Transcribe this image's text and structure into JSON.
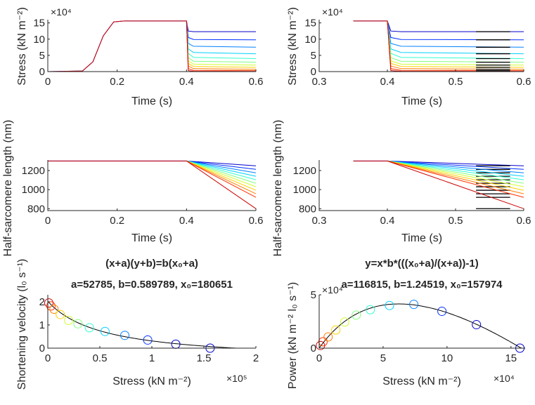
{
  "chart_data": [
    {
      "id": "p1",
      "type": "line",
      "xlabel": "Time (s)",
      "ylabel": "Stress (kN m⁻²)",
      "xlim": [
        0,
        0.6
      ],
      "ylim": [
        0,
        16
      ],
      "xticks": [
        "0",
        "0.2",
        "0.4",
        "0.6"
      ],
      "yticks": [
        "0",
        "5",
        "10",
        "15"
      ],
      "y_exponent": "×10⁴",
      "series": [
        {
          "color": "#0000cc",
          "values": [
            [
              0,
              0
            ],
            [
              0.1,
              0.2
            ],
            [
              0.13,
              3
            ],
            [
              0.16,
              11
            ],
            [
              0.19,
              15.3
            ],
            [
              0.22,
              15.6
            ],
            [
              0.4,
              15.6
            ],
            [
              0.405,
              12.5
            ],
            [
              0.42,
              12.3
            ],
            [
              0.6,
              12.3
            ]
          ]
        },
        {
          "color": "#0030ff",
          "values": [
            [
              0.4,
              15.6
            ],
            [
              0.405,
              10.5
            ],
            [
              0.42,
              9.9
            ],
            [
              0.6,
              9.8
            ]
          ]
        },
        {
          "color": "#0080ff",
          "values": [
            [
              0.4,
              15.6
            ],
            [
              0.405,
              8.7
            ],
            [
              0.42,
              7.8
            ],
            [
              0.6,
              7.5
            ]
          ]
        },
        {
          "color": "#00d0ff",
          "values": [
            [
              0.4,
              15.6
            ],
            [
              0.405,
              7.0
            ],
            [
              0.42,
              5.9
            ],
            [
              0.6,
              5.5
            ]
          ]
        },
        {
          "color": "#30ffd0",
          "values": [
            [
              0.4,
              15.6
            ],
            [
              0.405,
              5.6
            ],
            [
              0.42,
              4.4
            ],
            [
              0.6,
              4.0
            ]
          ]
        },
        {
          "color": "#80ff80",
          "values": [
            [
              0.4,
              15.6
            ],
            [
              0.405,
              4.3
            ],
            [
              0.42,
              3.2
            ],
            [
              0.6,
              2.9
            ]
          ]
        },
        {
          "color": "#d0ff30",
          "values": [
            [
              0.4,
              15.6
            ],
            [
              0.405,
              3.3
            ],
            [
              0.42,
              2.3
            ],
            [
              0.6,
              2.0
            ]
          ]
        },
        {
          "color": "#ffd000",
          "values": [
            [
              0.4,
              15.6
            ],
            [
              0.405,
              2.5
            ],
            [
              0.42,
              1.6
            ],
            [
              0.6,
              1.3
            ]
          ]
        },
        {
          "color": "#ff8000",
          "values": [
            [
              0.4,
              15.6
            ],
            [
              0.405,
              1.7
            ],
            [
              0.42,
              0.9
            ],
            [
              0.6,
              0.7
            ]
          ]
        },
        {
          "color": "#ff3000",
          "values": [
            [
              0.4,
              15.6
            ],
            [
              0.405,
              0.9
            ],
            [
              0.42,
              0.4
            ],
            [
              0.6,
              0.3
            ]
          ]
        },
        {
          "color": "#cc0000",
          "values": [
            [
              0,
              0
            ],
            [
              0.1,
              0.2
            ],
            [
              0.13,
              3
            ],
            [
              0.16,
              11
            ],
            [
              0.19,
              15.3
            ],
            [
              0.22,
              15.6
            ],
            [
              0.4,
              15.6
            ],
            [
              0.405,
              0.3
            ],
            [
              0.42,
              0.1
            ],
            [
              0.6,
              0.05
            ]
          ]
        }
      ]
    },
    {
      "id": "p2",
      "type": "line",
      "xlabel": "Time (s)",
      "ylabel": "Stress (kN m⁻²)",
      "xlim": [
        0.3,
        0.6
      ],
      "ylim": [
        0,
        16
      ],
      "xticks": [
        "0.3",
        "0.4",
        "0.5",
        "0.6"
      ],
      "yticks": [
        "0",
        "5",
        "10",
        "15"
      ],
      "y_exponent": "×10⁴",
      "highlight_window": [
        0.53,
        0.58
      ],
      "series": [
        {
          "color": "#0000cc",
          "values": [
            [
              0.35,
              15.6
            ],
            [
              0.4,
              15.6
            ],
            [
              0.405,
              12.5
            ],
            [
              0.42,
              12.3
            ],
            [
              0.6,
              12.3
            ]
          ]
        },
        {
          "color": "#0030ff",
          "values": [
            [
              0.4,
              15.6
            ],
            [
              0.405,
              10.5
            ],
            [
              0.42,
              9.9
            ],
            [
              0.6,
              9.8
            ]
          ]
        },
        {
          "color": "#0080ff",
          "values": [
            [
              0.4,
              15.6
            ],
            [
              0.405,
              8.7
            ],
            [
              0.42,
              7.8
            ],
            [
              0.6,
              7.5
            ]
          ]
        },
        {
          "color": "#00d0ff",
          "values": [
            [
              0.4,
              15.6
            ],
            [
              0.405,
              7.0
            ],
            [
              0.42,
              5.9
            ],
            [
              0.6,
              5.5
            ]
          ]
        },
        {
          "color": "#30ffd0",
          "values": [
            [
              0.4,
              15.6
            ],
            [
              0.405,
              5.6
            ],
            [
              0.42,
              4.4
            ],
            [
              0.6,
              4.0
            ]
          ]
        },
        {
          "color": "#80ff80",
          "values": [
            [
              0.4,
              15.6
            ],
            [
              0.405,
              4.3
            ],
            [
              0.42,
              3.2
            ],
            [
              0.6,
              2.9
            ]
          ]
        },
        {
          "color": "#d0ff30",
          "values": [
            [
              0.4,
              15.6
            ],
            [
              0.405,
              3.3
            ],
            [
              0.42,
              2.3
            ],
            [
              0.6,
              2.0
            ]
          ]
        },
        {
          "color": "#ffd000",
          "values": [
            [
              0.4,
              15.6
            ],
            [
              0.405,
              2.5
            ],
            [
              0.42,
              1.6
            ],
            [
              0.6,
              1.3
            ]
          ]
        },
        {
          "color": "#ff8000",
          "values": [
            [
              0.4,
              15.6
            ],
            [
              0.405,
              1.7
            ],
            [
              0.42,
              0.9
            ],
            [
              0.6,
              0.7
            ]
          ]
        },
        {
          "color": "#ff3000",
          "values": [
            [
              0.4,
              15.6
            ],
            [
              0.405,
              0.9
            ],
            [
              0.42,
              0.4
            ],
            [
              0.6,
              0.3
            ]
          ]
        },
        {
          "color": "#cc0000",
          "values": [
            [
              0.35,
              15.6
            ],
            [
              0.4,
              15.6
            ],
            [
              0.405,
              0.3
            ],
            [
              0.42,
              0.1
            ],
            [
              0.6,
              0.05
            ]
          ]
        }
      ]
    },
    {
      "id": "p3",
      "type": "line",
      "xlabel": "Time (s)",
      "ylabel": "Half-sarcomere length (nm)",
      "xlim": [
        0,
        0.6
      ],
      "ylim": [
        780,
        1310
      ],
      "xticks": [
        "0",
        "0.2",
        "0.4",
        "0.6"
      ],
      "yticks": [
        "800",
        "1000",
        "1200"
      ],
      "series": [
        {
          "color": "#0000cc",
          "values": [
            [
              0,
              1300
            ],
            [
              0.4,
              1300
            ],
            [
              0.6,
              1250
            ]
          ]
        },
        {
          "color": "#0030ff",
          "values": [
            [
              0.4,
              1300
            ],
            [
              0.6,
              1212
            ]
          ]
        },
        {
          "color": "#0080ff",
          "values": [
            [
              0.4,
              1300
            ],
            [
              0.6,
              1176
            ]
          ]
        },
        {
          "color": "#00d0ff",
          "values": [
            [
              0.4,
              1300
            ],
            [
              0.6,
              1140
            ]
          ]
        },
        {
          "color": "#30ffd0",
          "values": [
            [
              0.4,
              1300
            ],
            [
              0.6,
              1103
            ]
          ]
        },
        {
          "color": "#80ff80",
          "values": [
            [
              0.4,
              1300
            ],
            [
              0.6,
              1066
            ]
          ]
        },
        {
          "color": "#d0ff30",
          "values": [
            [
              0.4,
              1300
            ],
            [
              0.6,
              1030
            ]
          ]
        },
        {
          "color": "#ffd000",
          "values": [
            [
              0.4,
              1300
            ],
            [
              0.6,
              993
            ]
          ]
        },
        {
          "color": "#ff8000",
          "values": [
            [
              0.4,
              1300
            ],
            [
              0.6,
              956
            ]
          ]
        },
        {
          "color": "#ff3000",
          "values": [
            [
              0.4,
              1300
            ],
            [
              0.6,
              919
            ]
          ]
        },
        {
          "color": "#cc0000",
          "values": [
            [
              0,
              1300
            ],
            [
              0.4,
              1300
            ],
            [
              0.6,
              800
            ]
          ]
        }
      ]
    },
    {
      "id": "p4",
      "type": "line",
      "xlabel": "Time (s)",
      "ylabel": "Half-sarcomere length (nm)",
      "xlim": [
        0.3,
        0.6
      ],
      "ylim": [
        780,
        1310
      ],
      "xticks": [
        "0.3",
        "0.4",
        "0.5",
        "0.6"
      ],
      "yticks": [
        "800",
        "1000",
        "1200"
      ],
      "highlight_window": [
        0.53,
        0.58
      ],
      "series": [
        {
          "color": "#0000cc",
          "values": [
            [
              0.35,
              1300
            ],
            [
              0.4,
              1300
            ],
            [
              0.6,
              1250
            ]
          ]
        },
        {
          "color": "#0030ff",
          "values": [
            [
              0.4,
              1300
            ],
            [
              0.6,
              1212
            ]
          ]
        },
        {
          "color": "#0080ff",
          "values": [
            [
              0.4,
              1300
            ],
            [
              0.6,
              1176
            ]
          ]
        },
        {
          "color": "#00d0ff",
          "values": [
            [
              0.4,
              1300
            ],
            [
              0.6,
              1140
            ]
          ]
        },
        {
          "color": "#30ffd0",
          "values": [
            [
              0.4,
              1300
            ],
            [
              0.6,
              1103
            ]
          ]
        },
        {
          "color": "#80ff80",
          "values": [
            [
              0.4,
              1300
            ],
            [
              0.6,
              1066
            ]
          ]
        },
        {
          "color": "#d0ff30",
          "values": [
            [
              0.4,
              1300
            ],
            [
              0.6,
              1030
            ]
          ]
        },
        {
          "color": "#ffd000",
          "values": [
            [
              0.4,
              1300
            ],
            [
              0.6,
              993
            ]
          ]
        },
        {
          "color": "#ff8000",
          "values": [
            [
              0.4,
              1300
            ],
            [
              0.6,
              956
            ]
          ]
        },
        {
          "color": "#ff3000",
          "values": [
            [
              0.4,
              1300
            ],
            [
              0.6,
              919
            ]
          ]
        },
        {
          "color": "#cc0000",
          "values": [
            [
              0.35,
              1300
            ],
            [
              0.4,
              1300
            ],
            [
              0.6,
              800
            ]
          ]
        }
      ]
    },
    {
      "id": "p5",
      "type": "scatter",
      "title": "(x+a)(y+b)=b(x₀+a)",
      "subtitle": "a=52785, b=0.589789, x₀=180651",
      "xlabel": "Stress (kN m⁻²)",
      "ylabel": "Shortening velocity (l₀ s⁻¹)",
      "xlim": [
        0,
        2
      ],
      "ylim": [
        0,
        2.3
      ],
      "xticks": [
        "0",
        "0.5",
        "1",
        "1.5",
        "2"
      ],
      "yticks": [
        "0",
        "1",
        "2"
      ],
      "x_exponent": "×10⁵",
      "points": [
        {
          "x": 0.01,
          "y": 1.95,
          "color": "#cc0000"
        },
        {
          "x": 0.03,
          "y": 1.82,
          "color": "#ff3000"
        },
        {
          "x": 0.06,
          "y": 1.68,
          "color": "#ff8000"
        },
        {
          "x": 0.12,
          "y": 1.45,
          "color": "#ffd000"
        },
        {
          "x": 0.2,
          "y": 1.2,
          "color": "#d0ff30"
        },
        {
          "x": 0.29,
          "y": 1.05,
          "color": "#80ff80"
        },
        {
          "x": 0.4,
          "y": 0.88,
          "color": "#30ffd0"
        },
        {
          "x": 0.55,
          "y": 0.72,
          "color": "#00d0ff"
        },
        {
          "x": 0.74,
          "y": 0.55,
          "color": "#0080ff"
        },
        {
          "x": 0.96,
          "y": 0.35,
          "color": "#0030ff"
        },
        {
          "x": 1.23,
          "y": 0.17,
          "color": "#0000cc"
        },
        {
          "x": 1.56,
          "y": 0.0,
          "color": "#0000cc"
        }
      ],
      "fit": {
        "color": "#000000",
        "a": 0.52785,
        "b": 0.589789,
        "x0": 1.80651
      }
    },
    {
      "id": "p6",
      "type": "scatter",
      "title": "y=x*b*(((x₀+a)/(x+a))-1)",
      "subtitle": "a=116815, b=1.24519, x₀=157974",
      "xlabel": "Stress (kN m⁻²)",
      "ylabel": "Power (kN m⁻² l₀ s⁻¹)",
      "xlim": [
        0,
        16
      ],
      "ylim": [
        0,
        5
      ],
      "xticks": [
        "0",
        "5",
        "10",
        "15"
      ],
      "yticks": [
        "0",
        "5"
      ],
      "x_exponent": "×10⁴",
      "y_exponent": "×10⁴",
      "points": [
        {
          "x": 0.1,
          "y": 0.25,
          "color": "#cc0000"
        },
        {
          "x": 0.3,
          "y": 0.6,
          "color": "#ff3000"
        },
        {
          "x": 0.7,
          "y": 1.05,
          "color": "#ff8000"
        },
        {
          "x": 1.3,
          "y": 1.7,
          "color": "#ffd000"
        },
        {
          "x": 2.0,
          "y": 2.45,
          "color": "#d0ff30"
        },
        {
          "x": 2.9,
          "y": 3.1,
          "color": "#80ff80"
        },
        {
          "x": 4.0,
          "y": 3.6,
          "color": "#30ffd0"
        },
        {
          "x": 5.5,
          "y": 4.0,
          "color": "#00d0ff"
        },
        {
          "x": 7.4,
          "y": 4.1,
          "color": "#0080ff"
        },
        {
          "x": 9.6,
          "y": 3.45,
          "color": "#0030ff"
        },
        {
          "x": 12.3,
          "y": 2.2,
          "color": "#0000cc"
        },
        {
          "x": 15.7,
          "y": 0.0,
          "color": "#0000cc"
        }
      ],
      "fit": {
        "color": "#000000",
        "a": 11.6815,
        "b": 1.24519,
        "x0": 15.7974
      }
    }
  ]
}
